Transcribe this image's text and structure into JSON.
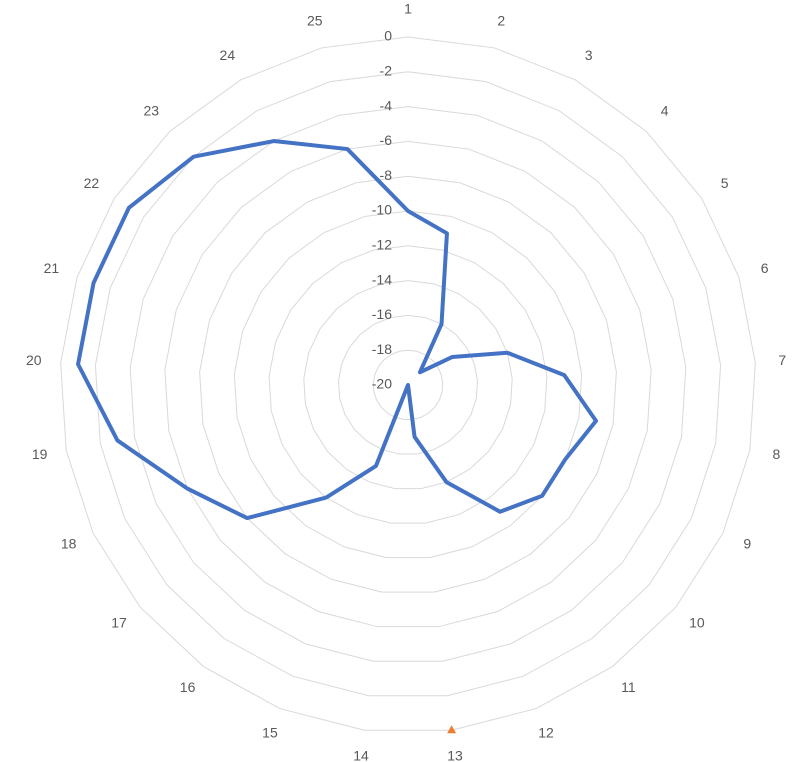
{
  "chart_data": {
    "type": "radar",
    "categories": [
      "1",
      "2",
      "3",
      "4",
      "5",
      "6",
      "7",
      "8",
      "9",
      "10",
      "11",
      "12",
      "13",
      "14",
      "15",
      "16",
      "17",
      "18",
      "19",
      "20",
      "21",
      "22",
      "23",
      "24",
      "25"
    ],
    "series": [
      {
        "color": "#4472c4",
        "marker": "none",
        "values": [
          -10,
          -11,
          -16,
          -19,
          -17,
          -14,
          -11,
          -9,
          -10,
          -10,
          -11,
          -14,
          -17,
          -20,
          -15,
          -12,
          -8,
          -6,
          -3,
          -1,
          -1,
          -1,
          -2,
          -4,
          -6
        ]
      },
      {
        "color": "#ed7d31",
        "marker": "triangle",
        "values": [
          null,
          null,
          null,
          null,
          null,
          null,
          null,
          null,
          null,
          null,
          null,
          null,
          0,
          null,
          null,
          null,
          null,
          null,
          null,
          null,
          null,
          null,
          null,
          null,
          null
        ]
      }
    ],
    "ylim": [
      -20,
      0
    ],
    "yticks": [
      0,
      -2,
      -4,
      -6,
      -8,
      -10,
      -12,
      -14,
      -16,
      -18,
      -20
    ],
    "grid": true
  }
}
